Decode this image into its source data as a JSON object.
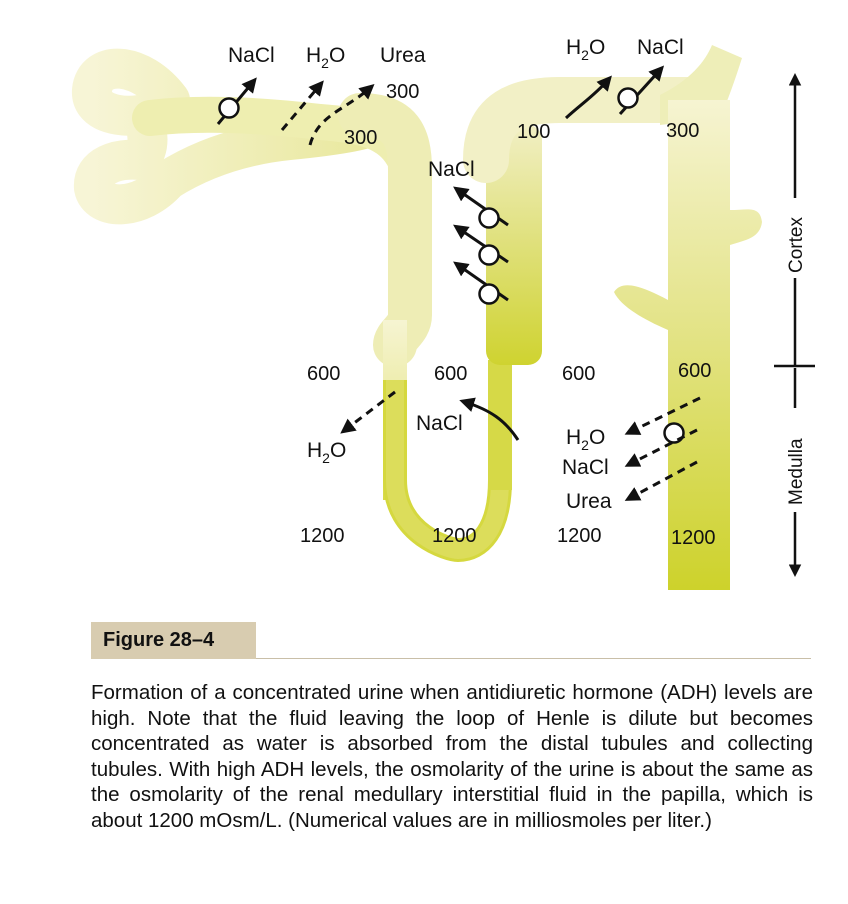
{
  "diagram": {
    "labels": {
      "nacl_top_left": "NaCl",
      "h2o_top_left_base": "H",
      "h2o_top_left_sub": "2",
      "h2o_top_left_tail": "O",
      "urea_top": "Urea",
      "h2o_top_right_base": "H",
      "h2o_top_right_sub": "2",
      "h2o_top_right_tail": "O",
      "nacl_top_right": "NaCl",
      "nacl_ascending_thick": "NaCl",
      "nacl_ascending_thin": "NaCl",
      "h2o_descending_base": "H",
      "h2o_descending_sub": "2",
      "h2o_descending_tail": "O",
      "h2o_collecting_base": "H",
      "h2o_collecting_sub": "2",
      "h2o_collecting_tail": "O",
      "nacl_collecting": "NaCl",
      "urea_collecting": "Urea"
    },
    "values": {
      "proximal_300_upper": "300",
      "proximal_300_lower": "300",
      "distal_100": "100",
      "cortical_collecting_300": "300",
      "interstitium_600_left": "600",
      "loop_600": "600",
      "interstitium_600_right": "600",
      "collecting_600": "600",
      "interstitium_1200_left": "1200",
      "loop_bend_1200": "1200",
      "interstitium_1200_right": "1200",
      "collecting_1200": "1200"
    },
    "axis": {
      "cortex": "Cortex",
      "medulla": "Medulla"
    }
  },
  "figure": {
    "label": "Figure 28–4",
    "caption": "Formation of a concentrated urine when antidiuretic hormone (ADH) levels are high. Note that the fluid leaving the loop of Henle is dilute but becomes concentrated as water is absorbed from the distal tubules and collecting tubules. With high ADH levels, the osmolarity of the urine is about the same as the osmolarity of the renal medullary interstitial fluid in the papilla, which is about 1200 mOsm/L. (Numerical values are in milliosmoles per liter.)"
  },
  "colors": {
    "tubule_light": "#f3f1c3",
    "tubule_mid": "#e6e58f",
    "tubule_dark": "#cfd430",
    "figure_label_bg": "#d8ccb0",
    "text": "#111111"
  }
}
